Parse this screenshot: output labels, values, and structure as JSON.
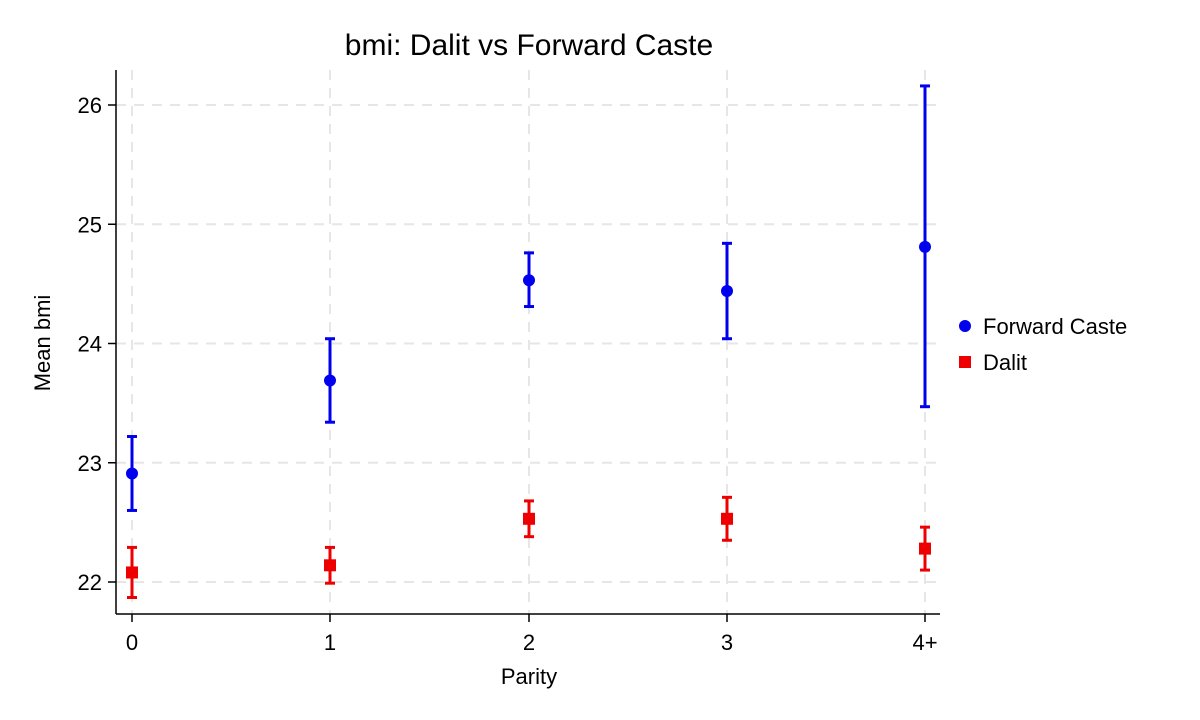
{
  "chart_data": {
    "type": "scatter",
    "title": "bmi: Dalit vs Forward Caste",
    "xlabel": "Parity",
    "ylabel": "Mean bmi",
    "categories": [
      "0",
      "1",
      "2",
      "3",
      "4+"
    ],
    "y_ticks": [
      "22",
      "23",
      "24",
      "25",
      "26"
    ],
    "ylim": [
      21.8,
      26.3
    ],
    "grid": true,
    "legend_position": "right",
    "series": [
      {
        "name": "Forward Caste",
        "color": "#0000ee",
        "marker": "circle",
        "values": [
          22.91,
          23.69,
          24.53,
          24.44,
          24.81
        ],
        "ci_low": [
          22.6,
          23.34,
          24.31,
          24.04,
          23.47
        ],
        "ci_high": [
          23.22,
          24.04,
          24.76,
          24.84,
          26.16
        ]
      },
      {
        "name": "Dalit",
        "color": "#ee0000",
        "marker": "square",
        "values": [
          22.08,
          22.14,
          22.53,
          22.53,
          22.28
        ],
        "ci_low": [
          21.87,
          21.99,
          22.38,
          22.35,
          22.1
        ],
        "ci_high": [
          22.29,
          22.29,
          22.68,
          22.71,
          22.46
        ]
      }
    ],
    "colors": {
      "axis": "#000000",
      "grid": "#e6e6e6"
    }
  }
}
